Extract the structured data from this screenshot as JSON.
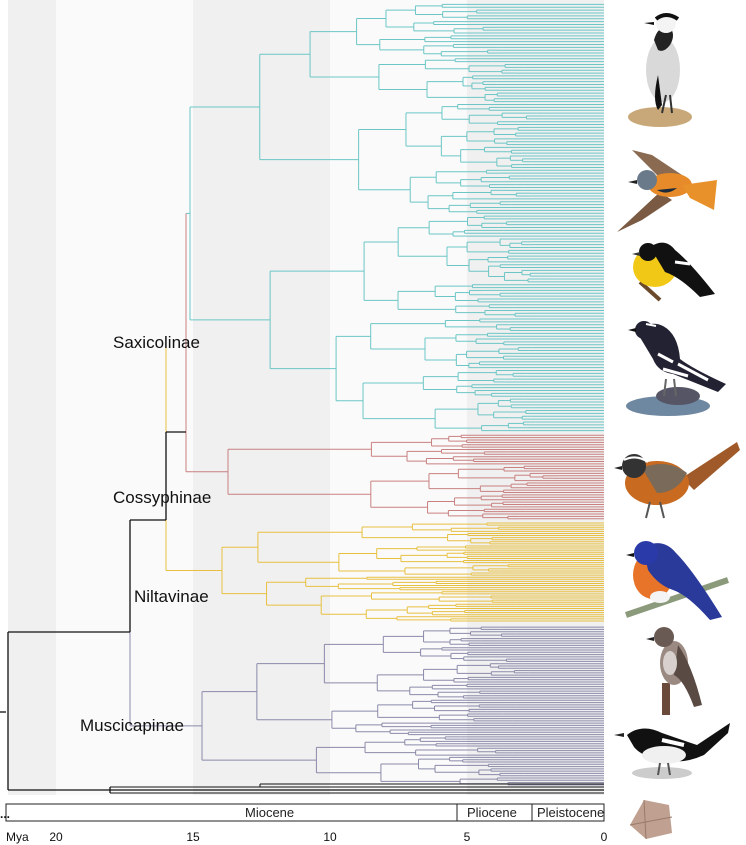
{
  "colors": {
    "Saxicolinae": "#6cc6c6",
    "Cossyphinae": "#c98080",
    "Niltavinae": "#e8c040",
    "Muscicapinae": "#8a8aaa",
    "backbone": "#111111",
    "band_dark": "#f0f0f0",
    "band_light": "#fafafa"
  },
  "clades": [
    {
      "key": "Saxicolinae",
      "label": "Saxicolinae"
    },
    {
      "key": "Cossyphinae",
      "label": "Cossyphinae"
    },
    {
      "key": "Niltavinae",
      "label": "Niltavinae"
    },
    {
      "key": "Muscicapinae",
      "label": "Muscicapinae"
    }
  ],
  "time_axis": {
    "unit_label": "Mya",
    "ticks": [
      "20",
      "15",
      "10",
      "5",
      "0"
    ],
    "epochs": [
      "Miocene",
      "Pliocene",
      "Pleistocene"
    ],
    "ellipsis": "..."
  },
  "birds": [
    {
      "icon": "wheatear-icon"
    },
    {
      "icon": "redstart-icon"
    },
    {
      "icon": "yellow-flycatcher-icon"
    },
    {
      "icon": "forktail-icon"
    },
    {
      "icon": "robin-chat-icon"
    },
    {
      "icon": "niltava-icon"
    },
    {
      "icon": "grey-flycatcher-icon"
    },
    {
      "icon": "magpie-robin-icon"
    },
    {
      "icon": "salt-crystal-icon"
    }
  ]
}
